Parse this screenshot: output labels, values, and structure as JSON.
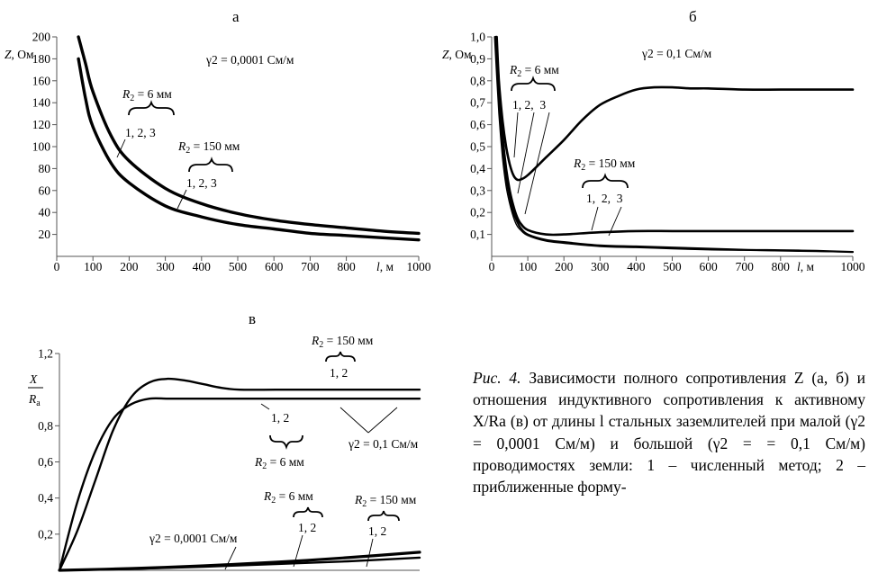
{
  "chart_data": [
    {
      "panel": "а",
      "type": "line",
      "annotation_gamma": "γ2 = 0,0001 См/м",
      "xlabel": "l, м",
      "ylabel": "Z, Ом",
      "xlim": [
        0,
        1000
      ],
      "ylim": [
        0,
        200
      ],
      "x_ticks": [
        "0",
        "100",
        "200",
        "300",
        "400",
        "500",
        "600",
        "700",
        "800",
        "1000"
      ],
      "y_ticks": [
        "20",
        "40",
        "60",
        "80",
        "100",
        "120",
        "140",
        "160",
        "180",
        "200"
      ],
      "group_labels": [
        {
          "radius": "R2 = 6 мм",
          "curves": "1, 2, 3"
        },
        {
          "radius": "R2 = 150 мм",
          "curves": "1, 2, 3"
        }
      ],
      "series": [
        {
          "group": "R2 = 6 мм",
          "x": [
            60,
            80,
            100,
            150,
            200,
            300,
            400,
            500,
            600,
            700,
            800,
            900,
            1000
          ],
          "values": [
            200,
            175,
            150,
            110,
            87,
            62,
            48,
            39,
            33,
            29,
            26,
            23,
            21
          ]
        },
        {
          "group": "R2 = 150 мм",
          "x": [
            60,
            80,
            100,
            150,
            200,
            300,
            400,
            500,
            600,
            700,
            800,
            900,
            1000
          ],
          "values": [
            180,
            143,
            118,
            85,
            67,
            46,
            36,
            29,
            25,
            21,
            19,
            17,
            15
          ]
        }
      ]
    },
    {
      "panel": "б",
      "type": "line",
      "annotation_gamma": "γ2 = 0,1 См/м",
      "xlabel": "l, м",
      "ylabel": "Z, Ом",
      "xlim": [
        0,
        1000
      ],
      "ylim": [
        0,
        1.0
      ],
      "x_ticks": [
        "0",
        "100",
        "200",
        "300",
        "400",
        "500",
        "600",
        "700",
        "800",
        "1000"
      ],
      "y_ticks": [
        "0,1",
        "0,2",
        "0,3",
        "0,4",
        "0,5",
        "0,6",
        "0,7",
        "0,8",
        "0,9",
        "1,0"
      ],
      "group_labels": [
        {
          "radius": "R2 = 6 мм",
          "curves": "1, 2,  3"
        },
        {
          "radius": "R2 = 150 мм",
          "curves": "1,  2,  3"
        }
      ],
      "series": [
        {
          "group": "R2 = 6 мм",
          "x": [
            14,
            20,
            30,
            40,
            50,
            60,
            70,
            80,
            100,
            150,
            200,
            250,
            300,
            350,
            400,
            450,
            500,
            550,
            600,
            700,
            800,
            900,
            1000
          ],
          "values": [
            1.0,
            0.8,
            0.62,
            0.5,
            0.42,
            0.37,
            0.35,
            0.35,
            0.37,
            0.45,
            0.53,
            0.62,
            0.69,
            0.73,
            0.76,
            0.77,
            0.77,
            0.765,
            0.765,
            0.76,
            0.76,
            0.76,
            0.76
          ]
        },
        {
          "group": "R2 = 150 мм",
          "x": [
            12,
            20,
            30,
            40,
            50,
            60,
            70,
            80,
            100,
            150,
            200,
            300,
            400,
            500,
            600,
            700,
            800,
            900,
            1000
          ],
          "values": [
            1.0,
            0.78,
            0.55,
            0.4,
            0.3,
            0.23,
            0.18,
            0.15,
            0.12,
            0.1,
            0.1,
            0.11,
            0.115,
            0.115,
            0.115,
            0.115,
            0.115,
            0.115,
            0.115
          ]
        },
        {
          "group": "R2 = 6 мм",
          "x": [
            10,
            20,
            30,
            40,
            50,
            60,
            70,
            80,
            100,
            150,
            200,
            300,
            400,
            500,
            600,
            700,
            800,
            900,
            1000
          ],
          "values": [
            1.0,
            0.72,
            0.5,
            0.36,
            0.27,
            0.2,
            0.16,
            0.13,
            0.1,
            0.075,
            0.065,
            0.05,
            0.045,
            0.04,
            0.035,
            0.03,
            0.028,
            0.025,
            0.02
          ]
        },
        {
          "group": "R2 = 150 мм",
          "x": [
            8,
            20,
            30,
            40,
            50,
            60,
            70,
            80,
            100,
            150,
            200,
            300,
            400,
            500,
            600,
            700,
            800,
            900,
            1000
          ],
          "values": [
            1.0,
            0.65,
            0.45,
            0.32,
            0.24,
            0.18,
            0.14,
            0.12,
            0.095,
            0.07,
            0.06,
            0.045,
            0.04,
            0.035,
            0.03,
            0.028,
            0.025,
            0.022,
            0.02
          ]
        }
      ]
    },
    {
      "panel": "в",
      "type": "line",
      "ylabel_num": "X",
      "ylabel_den": "R",
      "ylabel_den_sub": "a",
      "ylim": [
        0,
        1.2
      ],
      "y_ticks": [
        "0,2",
        "0,4",
        "0,6",
        "0,8",
        "1,2"
      ],
      "annotations": [
        {
          "radius": "R2 = 150 мм",
          "curves": "1, 2"
        },
        {
          "radius": "R2 = 6 мм",
          "curves": "1, 2"
        },
        {
          "gamma": "γ2 = 0,1 См/м"
        },
        {
          "radius": "R2 = 6 мм",
          "curves": "1, 2"
        },
        {
          "radius": "R2 = 150 мм",
          "curves": "1, 2"
        },
        {
          "gamma": "γ2 = 0,0001 См/м"
        }
      ],
      "series": [
        {
          "group": "R2 = 150 мм, γ2 = 0,1 См/м",
          "x": [
            0,
            50,
            100,
            150,
            200,
            250,
            300,
            350,
            400,
            450,
            500,
            600,
            700,
            800,
            900,
            1000
          ],
          "values": [
            0,
            0.22,
            0.5,
            0.78,
            0.96,
            1.04,
            1.06,
            1.05,
            1.03,
            1.01,
            1.0,
            1.0,
            1.0,
            1.0,
            1.0,
            1.0
          ]
        },
        {
          "group": "R2 = 6 мм, γ2 = 0,1 См/м",
          "x": [
            0,
            50,
            100,
            150,
            200,
            250,
            300,
            350,
            400,
            500,
            600,
            700,
            800,
            900,
            1000
          ],
          "values": [
            0,
            0.38,
            0.66,
            0.84,
            0.92,
            0.95,
            0.95,
            0.95,
            0.95,
            0.95,
            0.95,
            0.95,
            0.95,
            0.95,
            0.95
          ]
        },
        {
          "group": "R2 = 150 мм, γ2 = 0,0001 См/м",
          "x": [
            0,
            200,
            400,
            600,
            800,
            1000
          ],
          "values": [
            0,
            0.01,
            0.025,
            0.045,
            0.07,
            0.1
          ]
        },
        {
          "group": "R2 = 6 мм, γ2 = 0,0001 См/м",
          "x": [
            0,
            200,
            400,
            600,
            800,
            1000
          ],
          "values": [
            0,
            0.008,
            0.02,
            0.035,
            0.05,
            0.07
          ]
        }
      ]
    }
  ],
  "caption": {
    "label": "Рис. 4.",
    "text": "Зависимости полного сопротивления Z (а, б) и отношения индуктивного сопротивления к активному X/Rа (в) от длины l стальных заземлителей при малой (γ2 = 0,0001 См/м) и большой (γ2 = = 0,1 См/м) проводимостях земли: 1 – численный метод; 2 – приближенные форму-"
  }
}
